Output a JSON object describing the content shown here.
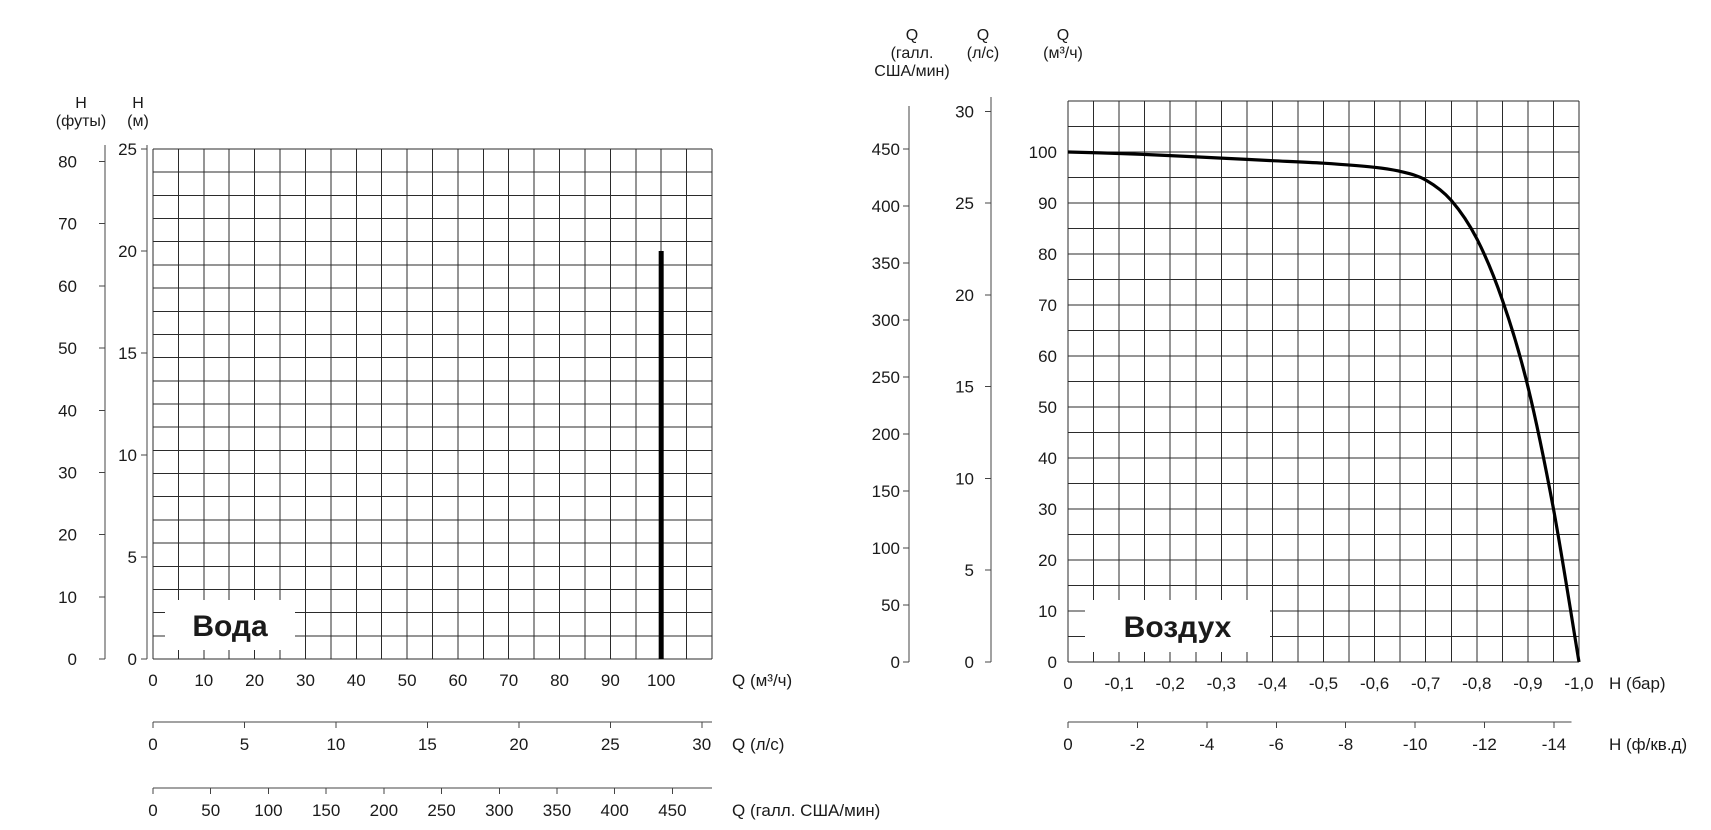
{
  "chart_data": [
    {
      "type": "line",
      "badge": "Вода",
      "y_axes": [
        {
          "header": [
            "H",
            "(футы)"
          ],
          "ticks": [
            "0",
            "10",
            "20",
            "30",
            "40",
            "50",
            "60",
            "70",
            "80"
          ],
          "range": [
            0,
            82.02
          ]
        },
        {
          "header": [
            "H",
            "(м)"
          ],
          "ticks": [
            "0",
            "5",
            "10",
            "15",
            "20",
            "25"
          ],
          "range": [
            0,
            25
          ]
        }
      ],
      "x_axes": [
        {
          "label": "Q (м³/ч)",
          "ticks": [
            "0",
            "10",
            "20",
            "30",
            "40",
            "50",
            "60",
            "70",
            "80",
            "90",
            "100"
          ],
          "range": [
            0,
            110
          ]
        },
        {
          "label": "Q (л/с)",
          "ticks": [
            "0",
            "5",
            "10",
            "15",
            "20",
            "25",
            "30"
          ],
          "range": [
            0,
            30.56
          ]
        },
        {
          "label": "Q (галл. США/мин)",
          "ticks": [
            "0",
            "50",
            "100",
            "150",
            "200",
            "250",
            "300",
            "350",
            "400",
            "450"
          ],
          "range": [
            0,
            484.3
          ]
        }
      ],
      "series": [
        {
          "x": [
            100,
            100
          ],
          "y": [
            0,
            20
          ]
        }
      ],
      "grid": true
    },
    {
      "type": "line",
      "badge": "Воздух",
      "y_axes": [
        {
          "header": [
            "Q",
            "(галл.",
            "США/мин)"
          ],
          "ticks": [
            "0",
            "50",
            "100",
            "150",
            "200",
            "250",
            "300",
            "350",
            "400",
            "450"
          ],
          "range": [
            0,
            484.3
          ]
        },
        {
          "header": [
            "Q",
            "(л/с)"
          ],
          "ticks": [
            "0",
            "5",
            "10",
            "15",
            "20",
            "25",
            "30"
          ],
          "range": [
            0,
            30.56
          ]
        },
        {
          "header": [
            "Q",
            "(м³/ч)"
          ],
          "ticks": [
            "0",
            "10",
            "20",
            "30",
            "40",
            "50",
            "60",
            "70",
            "80",
            "90",
            "100"
          ],
          "range": [
            0,
            110
          ]
        }
      ],
      "x_axes": [
        {
          "label": "H (бар)",
          "ticks": [
            "0",
            "-0,1",
            "-0,2",
            "-0,3",
            "-0,4",
            "-0,5",
            "-0,6",
            "-0,7",
            "-0,8",
            "-0,9",
            "-1,0"
          ],
          "range": [
            0,
            -1.0
          ]
        },
        {
          "label": "H (ф/кв.д)",
          "ticks": [
            "0",
            "-2",
            "-4",
            "-6",
            "-8",
            "-10",
            "-12",
            "-14"
          ],
          "range": [
            0,
            -14.5
          ]
        }
      ],
      "series": [
        {
          "x": [
            0,
            -0.1,
            -0.2,
            -0.3,
            -0.4,
            -0.5,
            -0.6,
            -0.65,
            -0.7,
            -0.75,
            -0.8,
            -0.85,
            -0.9,
            -0.95,
            -1.0
          ],
          "y": [
            100,
            99.7,
            99.3,
            98.8,
            98.3,
            97.8,
            97.0,
            96.2,
            94.5,
            90.5,
            83,
            71,
            54,
            30,
            0
          ]
        }
      ],
      "grid": true
    }
  ]
}
